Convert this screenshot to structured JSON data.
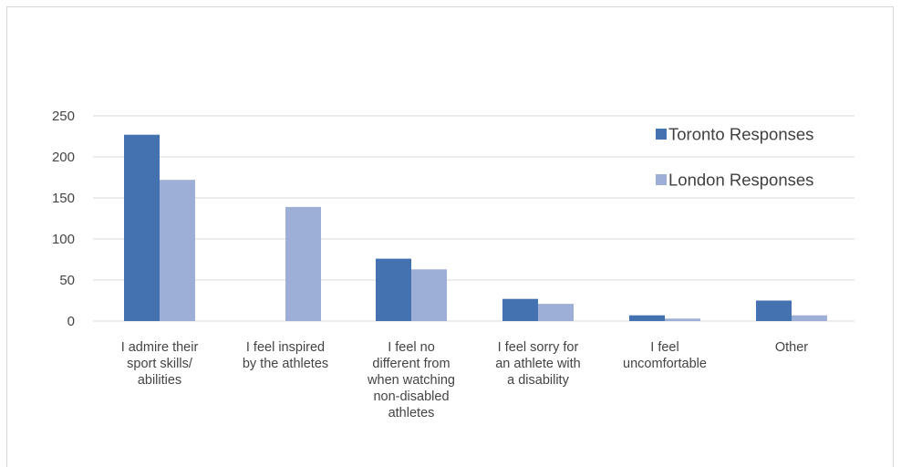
{
  "chart_data": {
    "type": "bar",
    "categories": [
      [
        "I admire their",
        "sport skills/",
        "abilities"
      ],
      [
        "I feel inspired",
        "by the athletes"
      ],
      [
        "I feel no",
        "different from",
        "when watching",
        "non-disabled",
        "athletes"
      ],
      [
        "I feel sorry for",
        "an athlete with",
        "a disability"
      ],
      [
        "I feel",
        "uncomfortable"
      ],
      [
        "Other"
      ]
    ],
    "series": [
      {
        "name": "Toronto Responses",
        "color": "#4472b0",
        "values": [
          227,
          0,
          76,
          27,
          7,
          25
        ]
      },
      {
        "name": "London Responses",
        "color": "#9dafd6",
        "values": [
          172,
          139,
          63,
          21,
          3,
          7
        ]
      }
    ],
    "ylim": [
      0,
      250
    ],
    "yticks": [
      0,
      50,
      100,
      150,
      200,
      250
    ],
    "grid": true,
    "legend_position": "top-right",
    "title": "",
    "xlabel": "",
    "ylabel": ""
  }
}
